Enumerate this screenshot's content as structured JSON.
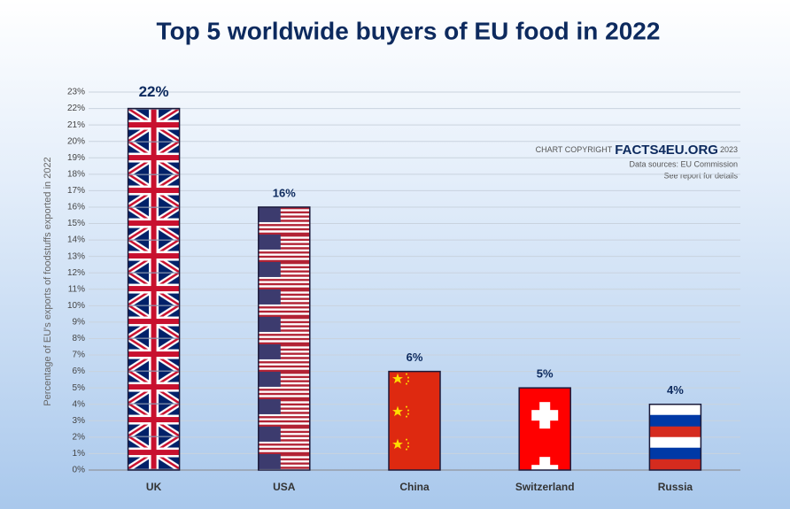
{
  "chart_data": {
    "type": "bar",
    "title": "Top 5 worldwide buyers of EU food in 2022",
    "y_label": "Percentage of EU's exports of foodstuffs exported in 2022",
    "categories": [
      "UK",
      "USA",
      "China",
      "Switzerland",
      "Russia"
    ],
    "values": [
      22,
      16,
      6,
      5,
      4
    ],
    "value_labels": [
      "22%",
      "16%",
      "6%",
      "5%",
      "4%"
    ],
    "ylim": [
      0,
      23
    ],
    "yticks": [
      {
        "value": 0,
        "label": "0%"
      },
      {
        "value": 1,
        "label": "1%"
      },
      {
        "value": 2,
        "label": "2%"
      },
      {
        "value": 3,
        "label": "3%"
      },
      {
        "value": 4,
        "label": "4%"
      },
      {
        "value": 5,
        "label": "5%"
      },
      {
        "value": 6,
        "label": "6%"
      },
      {
        "value": 7,
        "label": "7%"
      },
      {
        "value": 8,
        "label": "8%"
      },
      {
        "value": 9,
        "label": "9%"
      },
      {
        "value": 10,
        "label": "10%"
      },
      {
        "value": 11,
        "label": "11%"
      },
      {
        "value": 12,
        "label": "12%"
      },
      {
        "value": 13,
        "label": "13%"
      },
      {
        "value": 14,
        "label": "14%"
      },
      {
        "value": 15,
        "label": "15%"
      },
      {
        "value": 16,
        "label": "16%"
      },
      {
        "value": 17,
        "label": "17%"
      },
      {
        "value": 18,
        "label": "18%"
      },
      {
        "value": 19,
        "label": "19%"
      },
      {
        "value": 20,
        "label": "20%"
      },
      {
        "value": 21,
        "label": "21%"
      },
      {
        "value": 22,
        "label": "22%"
      },
      {
        "value": 23,
        "label": "23%"
      }
    ],
    "grid": true,
    "copyright": {
      "prefix": "CHART COPYRIGHT",
      "brand": "FACTS4EU.ORG",
      "year": "2023"
    },
    "notes": [
      "Data sources: EU Commission",
      "See report for details"
    ]
  }
}
